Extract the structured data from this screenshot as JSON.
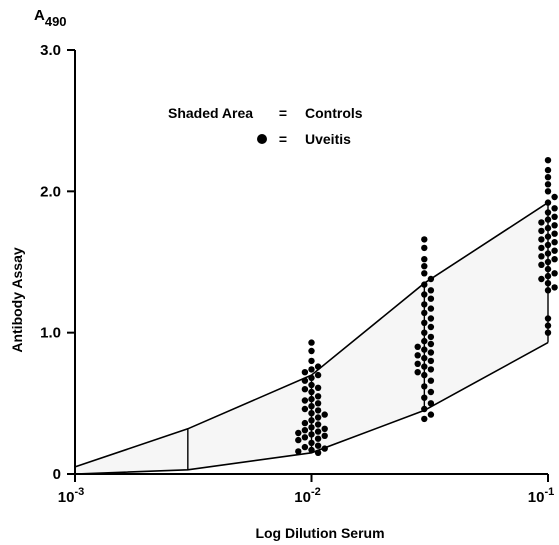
{
  "chart_data": {
    "type": "scatter",
    "title": "",
    "corner_label": "A",
    "corner_label_sub": "490",
    "xlabel": "Log Dilution Serum",
    "ylabel": "Antibody Assay",
    "x_scale": "log",
    "xlim": [
      0.001,
      0.1
    ],
    "ylim": [
      0,
      3.0
    ],
    "x_ticks": [
      {
        "value": 0.001,
        "base": "10",
        "exp": "-3"
      },
      {
        "value": 0.01,
        "base": "10",
        "exp": "-2"
      },
      {
        "value": 0.1,
        "base": "10",
        "exp": "-1"
      }
    ],
    "y_ticks": [
      {
        "value": 0,
        "label": "0"
      },
      {
        "value": 1.0,
        "label": "1.0"
      },
      {
        "value": 2.0,
        "label": "2.0"
      },
      {
        "value": 3.0,
        "label": "3.0"
      }
    ],
    "grid": false,
    "legend": {
      "position": "top-center",
      "entries": [
        {
          "symbol": "Shaded Area",
          "equals": "=",
          "label": "Controls"
        },
        {
          "symbol": "●",
          "equals": "=",
          "label": "Uveitis"
        }
      ]
    },
    "controls_band": {
      "x": [
        0.001,
        0.003,
        0.01,
        0.03,
        0.1
      ],
      "upper": [
        0.05,
        0.32,
        0.7,
        1.35,
        1.92
      ],
      "lower": [
        0.0,
        0.03,
        0.15,
        0.45,
        0.93
      ]
    },
    "uveitis": [
      {
        "x": 0.01,
        "values": [
          0.93,
          0.87,
          0.8,
          0.76,
          0.74,
          0.72,
          0.7,
          0.68,
          0.66,
          0.63,
          0.61,
          0.6,
          0.58,
          0.55,
          0.53,
          0.52,
          0.5,
          0.48,
          0.46,
          0.45,
          0.43,
          0.42,
          0.4,
          0.38,
          0.36,
          0.35,
          0.33,
          0.32,
          0.31,
          0.3,
          0.29,
          0.28,
          0.27,
          0.26,
          0.25,
          0.24,
          0.22,
          0.2,
          0.19,
          0.18,
          0.17,
          0.16,
          0.15
        ]
      },
      {
        "x": 0.03,
        "values": [
          1.66,
          1.6,
          1.52,
          1.47,
          1.42,
          1.38,
          1.34,
          1.3,
          1.27,
          1.24,
          1.2,
          1.17,
          1.14,
          1.1,
          1.07,
          1.04,
          1.0,
          0.97,
          0.94,
          0.92,
          0.9,
          0.88,
          0.86,
          0.84,
          0.82,
          0.8,
          0.78,
          0.76,
          0.74,
          0.72,
          0.7,
          0.66,
          0.62,
          0.58,
          0.54,
          0.5,
          0.46,
          0.42,
          0.39
        ]
      },
      {
        "x": 0.1,
        "values": [
          2.22,
          2.15,
          2.1,
          2.05,
          2.0,
          1.96,
          1.92,
          1.88,
          1.85,
          1.82,
          1.8,
          1.78,
          1.76,
          1.74,
          1.72,
          1.7,
          1.68,
          1.66,
          1.64,
          1.62,
          1.6,
          1.58,
          1.56,
          1.54,
          1.52,
          1.5,
          1.48,
          1.45,
          1.42,
          1.4,
          1.38,
          1.35,
          1.32,
          1.3,
          1.1,
          1.05,
          1.0
        ]
      }
    ]
  }
}
